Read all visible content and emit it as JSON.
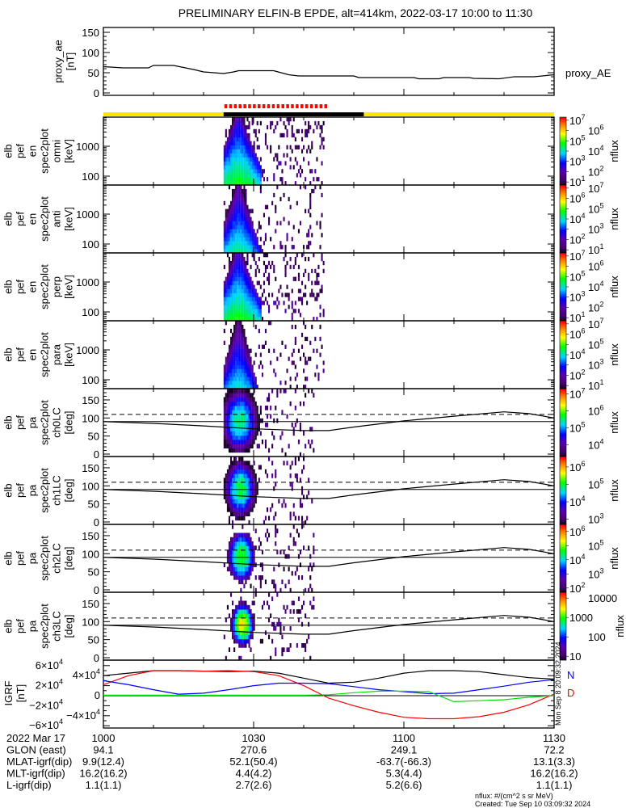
{
  "title": "PRELIMINARY ELFIN-B EPDE, alt=414km, 2022-03-17 10:00 to 11:30",
  "proxy_panel": {
    "ylabel_lines": [
      "proxy_ae",
      "[nT]"
    ],
    "yticks": [
      "0",
      "50",
      "100",
      "150"
    ],
    "legend": "proxy_AE"
  },
  "spec_panels": [
    {
      "ylabel_lines": [
        "elb",
        "pef",
        "en",
        "spec2plot",
        "omni",
        "[keV]"
      ],
      "yticks": [
        "100",
        "1000"
      ],
      "cb_label": "nflux",
      "cb_ticks": [
        {
          "m": "10",
          "e": "7"
        },
        {
          "m": "10",
          "e": "6"
        },
        {
          "m": "10",
          "e": "5"
        },
        {
          "m": "10",
          "e": "4"
        },
        {
          "m": "10",
          "e": "3"
        },
        {
          "m": "10",
          "e": "2"
        },
        {
          "m": "10",
          "e": "1"
        }
      ]
    },
    {
      "ylabel_lines": [
        "elb",
        "pef",
        "en",
        "spec2plot",
        "anti",
        "[keV]"
      ],
      "yticks": [
        "100",
        "1000"
      ],
      "cb_label": "nflux",
      "cb_ticks": [
        {
          "m": "10",
          "e": "7"
        },
        {
          "m": "10",
          "e": "6"
        },
        {
          "m": "10",
          "e": "5"
        },
        {
          "m": "10",
          "e": "4"
        },
        {
          "m": "10",
          "e": "3"
        },
        {
          "m": "10",
          "e": "2"
        },
        {
          "m": "10",
          "e": "1"
        }
      ]
    },
    {
      "ylabel_lines": [
        "elb",
        "pef",
        "en",
        "spec2plot",
        "perp",
        "[keV]"
      ],
      "yticks": [
        "100",
        "1000"
      ],
      "cb_label": "nflux",
      "cb_ticks": [
        {
          "m": "10",
          "e": "7"
        },
        {
          "m": "10",
          "e": "6"
        },
        {
          "m": "10",
          "e": "5"
        },
        {
          "m": "10",
          "e": "4"
        },
        {
          "m": "10",
          "e": "3"
        },
        {
          "m": "10",
          "e": "2"
        },
        {
          "m": "10",
          "e": "1"
        }
      ]
    },
    {
      "ylabel_lines": [
        "elb",
        "pef",
        "en",
        "spec2plot",
        "para",
        "[keV]"
      ],
      "yticks": [
        "100",
        "1000"
      ],
      "cb_label": "nflux",
      "cb_ticks": [
        {
          "m": "10",
          "e": "7"
        },
        {
          "m": "10",
          "e": "6"
        },
        {
          "m": "10",
          "e": "5"
        },
        {
          "m": "10",
          "e": "4"
        },
        {
          "m": "10",
          "e": "3"
        },
        {
          "m": "10",
          "e": "2"
        },
        {
          "m": "10",
          "e": "1"
        }
      ]
    },
    {
      "ylabel_lines": [
        "elb",
        "pef",
        "pa",
        "spec2plot",
        "ch0LC",
        "[deg]"
      ],
      "yticks": [
        "0",
        "50",
        "100",
        "150"
      ],
      "cb_label": "nflux",
      "cb_ticks": [
        {
          "m": "10",
          "e": "7"
        },
        {
          "m": "10",
          "e": "6"
        },
        {
          "m": "10",
          "e": "5"
        },
        {
          "m": "10",
          "e": "4"
        }
      ]
    },
    {
      "ylabel_lines": [
        "elb",
        "pef",
        "pa",
        "spec2plot",
        "ch1LC",
        "[deg]"
      ],
      "yticks": [
        "0",
        "50",
        "100",
        "150"
      ],
      "cb_label": "nflux",
      "cb_ticks": [
        {
          "m": "10",
          "e": "6"
        },
        {
          "m": "10",
          "e": "5"
        },
        {
          "m": "10",
          "e": "4"
        },
        {
          "m": "10",
          "e": "3"
        }
      ]
    },
    {
      "ylabel_lines": [
        "elb",
        "pef",
        "pa",
        "spec2plot",
        "ch2LC",
        "[deg]"
      ],
      "yticks": [
        "0",
        "50",
        "100",
        "150"
      ],
      "cb_label": "nflux",
      "cb_ticks": [
        {
          "m": "10",
          "e": "6"
        },
        {
          "m": "10",
          "e": "5"
        },
        {
          "m": "10",
          "e": "4"
        },
        {
          "m": "10",
          "e": "3"
        },
        {
          "m": "10",
          "e": "2"
        }
      ]
    },
    {
      "ylabel_lines": [
        "elb",
        "pef",
        "pa",
        "spec2plot",
        "ch3LC",
        "[deg]"
      ],
      "yticks": [
        "0",
        "50",
        "100",
        "150"
      ],
      "cb_label": "nflux",
      "cb_ticks": [
        {
          "m": "10000",
          "e": ""
        },
        {
          "m": "1000",
          "e": ""
        },
        {
          "m": "100",
          "e": ""
        },
        {
          "m": "10",
          "e": ""
        }
      ]
    }
  ],
  "igrf_panel": {
    "ylabel_lines": [
      "IGRF",
      "[nT]"
    ],
    "yticks": [
      {
        "m": "6×10",
        "e": "4"
      },
      {
        "m": "4×10",
        "e": "4"
      },
      {
        "m": "2×10",
        "e": "4"
      },
      {
        "m": "0",
        "e": ""
      },
      {
        "m": "−2×10",
        "e": "4"
      },
      {
        "m": "−4×10",
        "e": "4"
      },
      {
        "m": "−6×10",
        "e": "4"
      }
    ],
    "legend": [
      {
        "label": "N",
        "color": "#0000ff"
      },
      {
        "label": "D",
        "color": "#ff0000"
      }
    ],
    "side_stamp": "Mon Sep 8 20:09:32 2024"
  },
  "footer": {
    "rows": [
      [
        "2022 Mar 17",
        "1000",
        "1030",
        "1100",
        "1130"
      ],
      [
        "GLON (east)",
        "94.1",
        "270.6",
        "249.1",
        "72.2"
      ],
      [
        "MLAT-igrf(dip)",
        "9.9(12.4)",
        "52.1(50.4)",
        "-63.7(-66.3)",
        "13.1(3.3)"
      ],
      [
        "MLT-igrf(dip)",
        "16.2(16.2)",
        "4.4(4.2)",
        "5.3(4.4)",
        "16.2(16.2)"
      ],
      [
        "L-igrf(dip)",
        "1.1(1.1)",
        "2.7(2.6)",
        "5.2(6.6)",
        "1.1(1.1)"
      ]
    ],
    "units_note": "nflux: #/(cm^2 s sr MeV)",
    "created": "Created: Tue Sep 10 03:09:32 2024"
  },
  "colors": {
    "yellow_bar": "#ffe600",
    "black_bar": "#000000",
    "red_marks": "#ff0000",
    "total": "#000000",
    "n": "#0000ff",
    "d": "#ff0000",
    "z": "#00e000"
  },
  "chart_data": {
    "type": "spectrogram+line",
    "time_range_min": [
      0,
      90
    ],
    "time_ticks": [
      "1000",
      "1030",
      "1100",
      "1130"
    ],
    "proxy_ae": {
      "t_min": [
        0,
        4,
        9,
        10,
        14,
        18,
        20,
        24,
        26,
        27,
        34,
        37,
        39,
        50,
        51,
        62,
        63,
        67,
        68,
        73,
        74,
        79,
        82,
        86,
        90
      ],
      "values_nT": [
        65,
        62,
        62,
        68,
        68,
        58,
        52,
        48,
        52,
        55,
        55,
        45,
        42,
        42,
        38,
        38,
        35,
        35,
        38,
        38,
        36,
        35,
        40,
        40,
        45
      ],
      "ylim": [
        0,
        150
      ]
    },
    "status_bar": {
      "yellow_ranges_min": [
        [
          0,
          24
        ],
        [
          52,
          90
        ]
      ],
      "black_range_min": [
        24,
        52
      ],
      "red_marks_range_min": [
        24,
        44
      ]
    },
    "spectrogram": {
      "data_range_min": [
        24,
        44
      ],
      "core_burst_min": [
        24,
        31
      ],
      "energy_ylim_keV": [
        60,
        9000
      ],
      "pa_ylim_deg": [
        0,
        180
      ],
      "peak_log10_nflux": [
        4.8,
        4.3,
        4.8,
        4.0,
        5.5,
        5.0,
        4.7,
        3.5
      ]
    },
    "pa_lines": {
      "t_min": [
        0,
        10,
        20,
        30,
        40,
        45,
        50,
        60,
        70,
        80,
        85,
        90
      ],
      "loss_cone_deg": [
        90,
        85,
        78,
        70,
        65,
        65,
        75,
        92,
        105,
        117,
        112,
        100
      ],
      "dashed_deg": 110,
      "solid_deg": 90
    },
    "igrf": {
      "unit": "1e4 nT",
      "t_min": [
        0,
        5,
        10,
        15,
        20,
        25,
        30,
        35,
        40,
        45,
        50,
        55,
        60,
        65,
        70,
        75,
        80,
        85,
        90
      ],
      "series": [
        {
          "name": "total",
          "color": "#000000",
          "values": [
            4.0,
            4.5,
            5.0,
            5.0,
            4.9,
            4.8,
            4.9,
            4.5,
            3.5,
            2.5,
            2.7,
            3.5,
            4.5,
            5.0,
            5.0,
            4.8,
            4.2,
            3.6,
            3.3
          ]
        },
        {
          "name": "D",
          "color": "#ff0000",
          "values": [
            2.2,
            4.0,
            5.0,
            5.0,
            4.9,
            5.0,
            4.8,
            4.0,
            2.0,
            -0.5,
            -2.0,
            -3.3,
            -4.3,
            -4.6,
            -4.6,
            -4.2,
            -3.3,
            -1.8,
            0.3
          ]
        },
        {
          "name": "N",
          "color": "#0000ff",
          "values": [
            3.0,
            2.2,
            1.2,
            0.3,
            0.5,
            1.2,
            2.0,
            2.5,
            2.5,
            2.4,
            1.8,
            1.2,
            0.8,
            0.4,
            0.5,
            1.2,
            1.9,
            2.7,
            3.2
          ]
        },
        {
          "name": "Z",
          "color": "#00e000",
          "values": [
            0.1,
            0.1,
            0.1,
            0.1,
            0.1,
            0.1,
            0.1,
            0.1,
            0.1,
            0.2,
            0.6,
            0.9,
            0.9,
            0.8,
            -1.2,
            -1.0,
            -0.8,
            -0.3,
            0.0
          ]
        }
      ],
      "ylim": [
        -6.7,
        6.7
      ]
    }
  }
}
